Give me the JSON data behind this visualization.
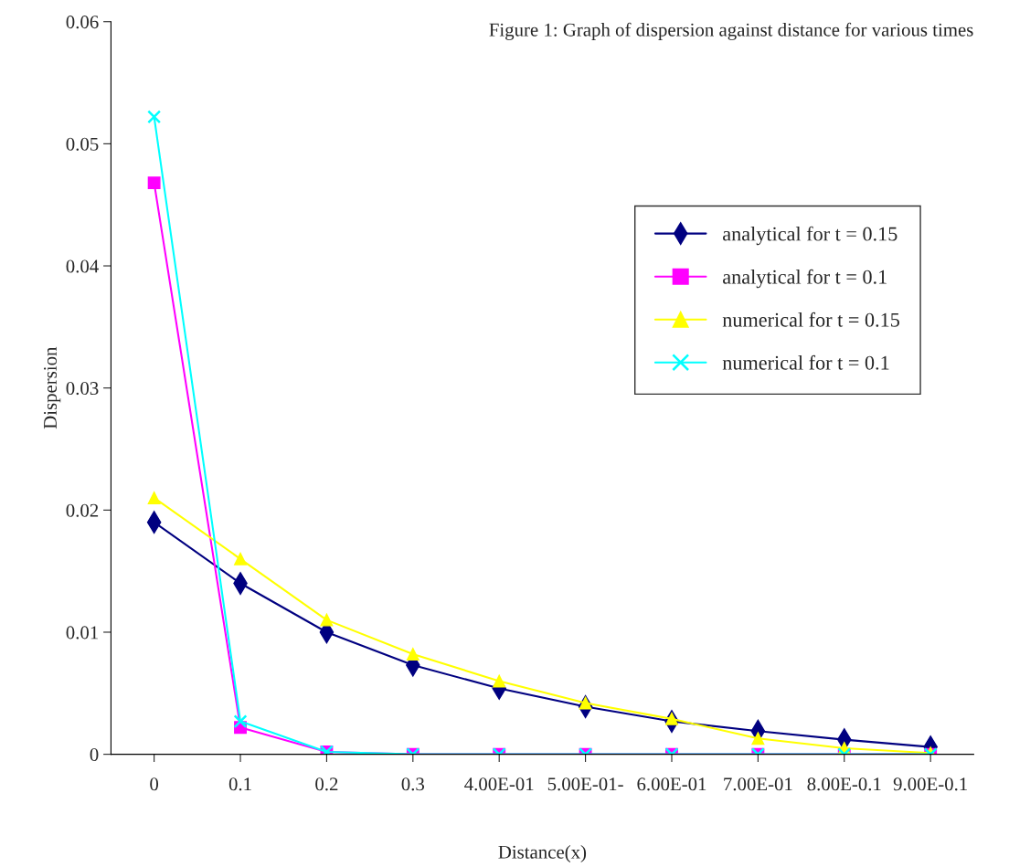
{
  "chart_data": {
    "type": "line",
    "title": "Figure 1: Graph of dispersion against distance for various times",
    "xlabel": "Distance(x)",
    "ylabel": "Dispersion",
    "categories": [
      "0",
      "0.1",
      "0.2",
      "0.3",
      "4.00E-01",
      "5.00E-01-",
      "6.00E-01",
      "7.00E-01",
      "8.00E-0.1",
      "9.00E-0.1"
    ],
    "ylim": [
      0,
      0.06
    ],
    "yticks": [
      0,
      0.01,
      0.02,
      0.03,
      0.04,
      0.05,
      0.06
    ],
    "grid": false,
    "legend": "right",
    "series": [
      {
        "name": "analytical for t = 0.15",
        "color": "#000080",
        "marker": "diamond",
        "values": [
          0.019,
          0.014,
          0.01,
          0.0073,
          0.0054,
          0.0039,
          0.0027,
          0.0019,
          0.0012,
          0.0006
        ]
      },
      {
        "name": "analytical for t = 0.1",
        "color": "#ff00ff",
        "marker": "square",
        "values": [
          0.0468,
          0.0022,
          0.0002,
          0,
          0,
          0,
          0,
          0,
          0,
          0
        ]
      },
      {
        "name": "numerical for t = 0.15",
        "color": "#ffff00",
        "marker": "triangle",
        "values": [
          0.021,
          0.016,
          0.011,
          0.0082,
          0.006,
          0.0042,
          0.0029,
          0.0013,
          0.0005,
          0.0001
        ]
      },
      {
        "name": "numerical for t = 0.1",
        "color": "#00ffff",
        "marker": "cross",
        "values": [
          0.0522,
          0.0027,
          0.0002,
          0,
          0,
          0,
          0,
          0,
          0,
          0
        ]
      }
    ]
  }
}
